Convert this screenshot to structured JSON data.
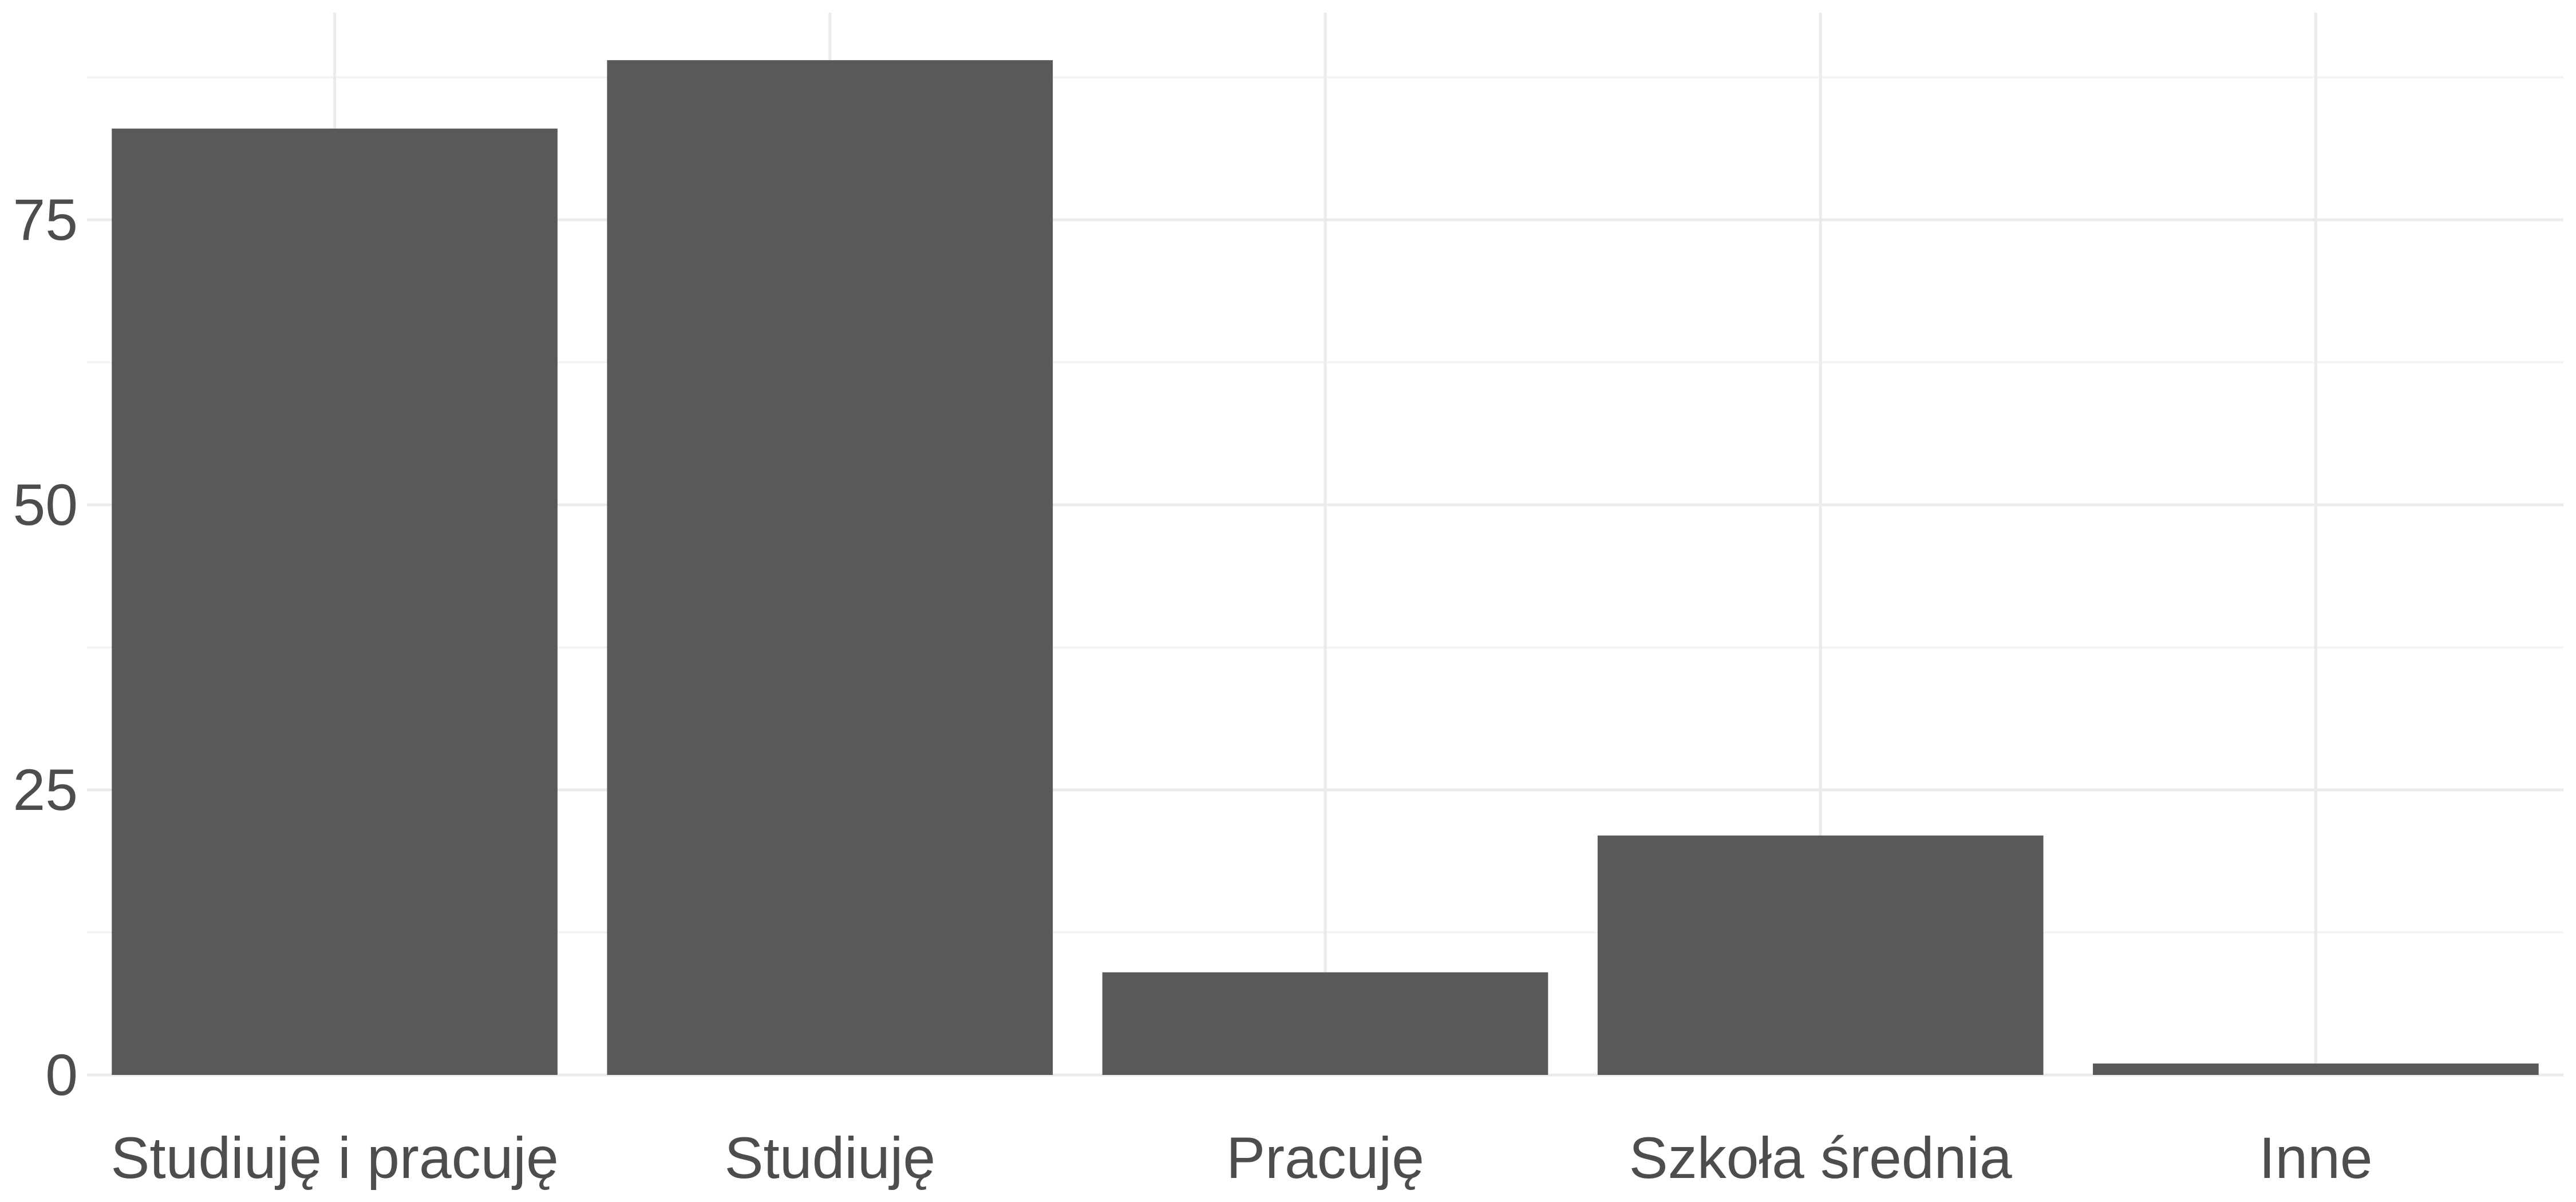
{
  "chart_data": {
    "type": "bar",
    "title": "",
    "xlabel": "",
    "ylabel": "",
    "categories": [
      "Studiuję i pracuję",
      "Studiuję",
      "Pracuję",
      "Szkoła średnia",
      "Inne"
    ],
    "values": [
      83,
      89,
      9,
      21,
      1
    ],
    "ylim": [
      0,
      93.45
    ],
    "yticks": [
      0,
      25,
      50,
      75
    ],
    "ytick_labels": [
      "0",
      "25",
      "50",
      "75"
    ],
    "yminor": [
      12.5,
      37.5,
      62.5,
      87.5
    ],
    "grid": true,
    "legend": "none",
    "bar_color": "#595959",
    "grid_color": "#ebebeb",
    "text_color": "#4d4d4d"
  }
}
